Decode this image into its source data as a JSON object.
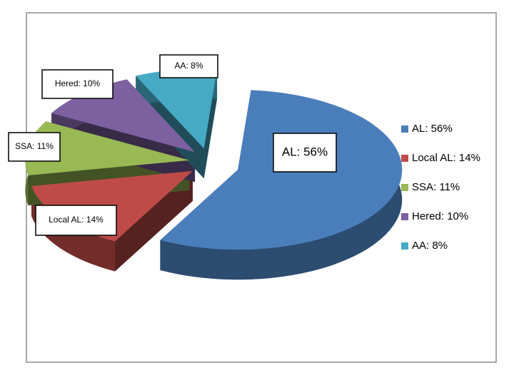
{
  "chart_data": {
    "type": "pie",
    "categories": [
      "AL: 56%",
      "Local AL: 14%",
      "SSA: 11%",
      "Hered: 10%",
      "AA: 8%"
    ],
    "values": [
      56,
      14,
      11,
      10,
      8
    ],
    "value_labels": [
      "AL: 56%",
      "Local AL: 14%",
      "SSA: 11%",
      "Hered: 10%",
      "AA: 8%"
    ],
    "colors": [
      "#4a7ebb",
      "#be4b48",
      "#98b954",
      "#7d60a0",
      "#46aac5"
    ],
    "legend": "right"
  }
}
